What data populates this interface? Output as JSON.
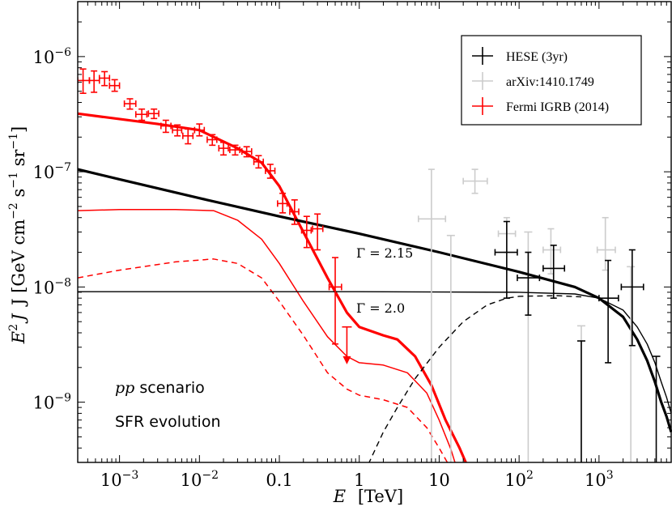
{
  "chart_data": {
    "type": "line",
    "xscale": "log",
    "yscale": "log",
    "xlim": [
      0.0003,
      8000
    ],
    "ylim": [
      3e-10,
      3e-06
    ],
    "xlabel": {
      "var": "E",
      "unit": "[TeV]"
    },
    "ylabel": {
      "base": "J [GeV cm",
      "e1": "−2",
      "mid1": " s",
      "e2": "−1",
      "mid2": " sr",
      "e3": "−1",
      "end": "]"
    },
    "x_ticks": [
      {
        "value": 0.001,
        "base": "10",
        "exp": "−3"
      },
      {
        "value": 0.01,
        "base": "10",
        "exp": "−2"
      },
      {
        "value": 0.1,
        "base": "0.1",
        "exp": ""
      },
      {
        "value": 1,
        "base": "1",
        "exp": ""
      },
      {
        "value": 10,
        "base": "10",
        "exp": ""
      },
      {
        "value": 100,
        "base": "10",
        "exp": "2"
      },
      {
        "value": 1000,
        "base": "10",
        "exp": "3"
      }
    ],
    "y_ticks": [
      {
        "value": 1e-09,
        "base": "10",
        "exp": "−9"
      },
      {
        "value": 1e-08,
        "base": "10",
        "exp": "−8"
      },
      {
        "value": 1e-07,
        "base": "10",
        "exp": "−7"
      },
      {
        "value": 1e-06,
        "base": "10",
        "exp": "−6"
      }
    ],
    "annotations": {
      "gamma_215": "Γ = 2.15",
      "gamma_20": "Γ = 2.0",
      "scenario_var": "pp",
      "scenario_word": " scenario",
      "evolution": "SFR evolution"
    },
    "legend": [
      {
        "label": "HESE (3yr)",
        "color": "#000000"
      },
      {
        "label": "arXiv:1410.1749",
        "color": "#cccccc"
      },
      {
        "label": "Fermi IGRB (2014)",
        "color": "#ff0000"
      }
    ],
    "lines": [
      {
        "name": "red-total-thick",
        "color": "#ff0000",
        "width": 3.2,
        "dash": "",
        "points": [
          [
            0.0003,
            3.2e-07
          ],
          [
            0.003,
            2.6e-07
          ],
          [
            0.01,
            2.3e-07
          ],
          [
            0.03,
            1.6e-07
          ],
          [
            0.06,
            1.2e-07
          ],
          [
            0.1,
            7.5e-08
          ],
          [
            0.2,
            3e-08
          ],
          [
            0.4,
            1.2e-08
          ],
          [
            0.7,
            6e-09
          ],
          [
            1,
            4.5e-09
          ],
          [
            2,
            3.8e-09
          ],
          [
            3,
            3.5e-09
          ],
          [
            5,
            2.5e-09
          ],
          [
            8,
            1.4e-09
          ],
          [
            12,
            7e-10
          ],
          [
            18,
            4e-10
          ],
          [
            22,
            2.9e-10
          ]
        ]
      },
      {
        "name": "red-thin-solid",
        "color": "#ff0000",
        "width": 1.5,
        "dash": "",
        "points": [
          [
            0.0003,
            4.6e-08
          ],
          [
            0.001,
            4.7e-08
          ],
          [
            0.005,
            4.7e-08
          ],
          [
            0.015,
            4.6e-08
          ],
          [
            0.03,
            3.8e-08
          ],
          [
            0.06,
            2.6e-08
          ],
          [
            0.1,
            1.6e-08
          ],
          [
            0.2,
            7.5e-09
          ],
          [
            0.4,
            3.7e-09
          ],
          [
            0.7,
            2.5e-09
          ],
          [
            1,
            2.2e-09
          ],
          [
            2,
            2.1e-09
          ],
          [
            4,
            1.8e-09
          ],
          [
            7,
            1.2e-09
          ],
          [
            10,
            7e-10
          ],
          [
            14,
            3.9e-10
          ],
          [
            16,
            2.9e-10
          ]
        ]
      },
      {
        "name": "red-dashed",
        "color": "#ff0000",
        "width": 1.5,
        "dash": "7,5",
        "points": [
          [
            0.0003,
            1.2e-08
          ],
          [
            0.001,
            1.4e-08
          ],
          [
            0.005,
            1.65e-08
          ],
          [
            0.015,
            1.75e-08
          ],
          [
            0.03,
            1.6e-08
          ],
          [
            0.06,
            1.2e-08
          ],
          [
            0.1,
            7.5e-09
          ],
          [
            0.2,
            3.8e-09
          ],
          [
            0.4,
            1.8e-09
          ],
          [
            0.7,
            1.3e-09
          ],
          [
            1,
            1.15e-09
          ],
          [
            2,
            1.05e-09
          ],
          [
            4,
            9e-10
          ],
          [
            7,
            6e-10
          ],
          [
            10,
            4e-10
          ],
          [
            13,
            2.9e-10
          ]
        ]
      },
      {
        "name": "black-thick",
        "color": "#000000",
        "width": 3.2,
        "dash": "",
        "points": [
          [
            0.0003,
            1.05e-07
          ],
          [
            0.001,
            8.6e-08
          ],
          [
            0.01,
            5.9e-08
          ],
          [
            0.1,
            4.1e-08
          ],
          [
            1,
            2.9e-08
          ],
          [
            10,
            2e-08
          ],
          [
            100,
            1.35e-08
          ],
          [
            500,
            1e-08
          ],
          [
            1000,
            8e-09
          ],
          [
            2000,
            5.5e-09
          ],
          [
            3000,
            3.5e-09
          ],
          [
            4000,
            2.3e-09
          ],
          [
            5000,
            1.5e-09
          ],
          [
            6000,
            1e-09
          ],
          [
            7000,
            7.5e-10
          ],
          [
            8000,
            5.5e-10
          ]
        ]
      },
      {
        "name": "black-thin",
        "color": "#000000",
        "width": 1.4,
        "dash": "",
        "points": [
          [
            0.0003,
            9.1e-09
          ],
          [
            1,
            9.1e-09
          ],
          [
            100,
            9e-09
          ],
          [
            500,
            8.7e-09
          ],
          [
            1000,
            8e-09
          ],
          [
            2000,
            6.3e-09
          ],
          [
            3000,
            4.5e-09
          ],
          [
            4000,
            3.2e-09
          ],
          [
            5000,
            2.2e-09
          ],
          [
            6000,
            1.5e-09
          ],
          [
            7000,
            1.1e-09
          ],
          [
            8000,
            8e-10
          ]
        ]
      },
      {
        "name": "black-dashed",
        "color": "#000000",
        "width": 1.4,
        "dash": "7,5",
        "points": [
          [
            1.3,
            2.9e-10
          ],
          [
            2,
            5.5e-10
          ],
          [
            3,
            9e-10
          ],
          [
            5,
            1.6e-09
          ],
          [
            10,
            3e-09
          ],
          [
            20,
            5e-09
          ],
          [
            40,
            7e-09
          ],
          [
            70,
            8e-09
          ],
          [
            100,
            8.3e-09
          ],
          [
            300,
            8.4e-09
          ],
          [
            600,
            8.2e-09
          ]
        ]
      }
    ],
    "series": [
      {
        "name": "arXiv:1410.1749",
        "color": "#cccccc",
        "points": [
          {
            "x": 8,
            "y": 3.9e-08,
            "xlo": 5.5,
            "xhi": 12,
            "ylo": 2.9e-10,
            "yhi": 1.05e-07
          },
          {
            "x": 14,
            "y": 2.8e-08,
            "lo_only": true,
            "ylo": 2.9e-10
          },
          {
            "x": 28,
            "y": 8.3e-08,
            "xlo": 20,
            "xhi": 40,
            "ylo": 6.5e-08,
            "yhi": 1.05e-07
          },
          {
            "x": 70,
            "y": 2.9e-08,
            "xlo": 55,
            "xhi": 90,
            "ylo": 2e-08,
            "yhi": 4e-08
          },
          {
            "x": 130,
            "y": 3e-08,
            "lo_only": true,
            "ylo": 2.9e-10
          },
          {
            "x": 250,
            "y": 2.1e-08,
            "xlo": 200,
            "xhi": 330,
            "ylo": 1.3e-08,
            "yhi": 3.2e-08
          },
          {
            "x": 600,
            "y": 4.6e-09,
            "lo_only": true,
            "ylo": 2.9e-10
          },
          {
            "x": 1200,
            "y": 2.1e-08,
            "xlo": 950,
            "xhi": 1600,
            "ylo": 1.4e-08,
            "yhi": 4e-08
          },
          {
            "x": 2500,
            "y": 1.5e-08,
            "lo_only": true,
            "ylo": 2.9e-10
          }
        ]
      },
      {
        "name": "HESE (3yr)",
        "color": "#000000",
        "points": [
          {
            "x": 70,
            "y": 2e-08,
            "xlo": 50,
            "xhi": 95,
            "ylo": 8e-09,
            "yhi": 3.7e-08
          },
          {
            "x": 130,
            "y": 1.2e-08,
            "xlo": 95,
            "xhi": 180,
            "ylo": 5.7e-09,
            "yhi": 2e-08
          },
          {
            "x": 270,
            "y": 1.45e-08,
            "xlo": 200,
            "xhi": 370,
            "ylo": 8e-09,
            "yhi": 2.3e-08
          },
          {
            "x": 600,
            "y": 3.4e-09,
            "lo_only": true,
            "ylo": 2.9e-10
          },
          {
            "x": 1300,
            "y": 8e-09,
            "xlo": 1000,
            "xhi": 1750,
            "ylo": 2.2e-09,
            "yhi": 1.7e-08
          },
          {
            "x": 2600,
            "y": 1e-08,
            "xlo": 1900,
            "xhi": 3600,
            "ylo": 3.1e-09,
            "yhi": 2.1e-08
          },
          {
            "x": 5200,
            "y": 2.5e-09,
            "lo_only": true,
            "ylo": 2.9e-10
          }
        ]
      },
      {
        "name": "Fermi IGRB (2014)",
        "color": "#ff0000",
        "points": [
          {
            "x": 0.00035,
            "y": 6.2e-07,
            "xlo": 0.0003,
            "xhi": 0.00042,
            "ylo": 4.8e-07,
            "yhi": 7.8e-07
          },
          {
            "x": 0.00048,
            "y": 6.2e-07,
            "xlo": 0.00042,
            "xhi": 0.00056,
            "ylo": 4.9e-07,
            "yhi": 7.5e-07
          },
          {
            "x": 0.00065,
            "y": 6.5e-07,
            "xlo": 0.00056,
            "xhi": 0.00075,
            "ylo": 5.6e-07,
            "yhi": 7.4e-07
          },
          {
            "x": 0.00087,
            "y": 5.6e-07,
            "xlo": 0.00075,
            "xhi": 0.001,
            "ylo": 5e-07,
            "yhi": 6.3e-07
          },
          {
            "x": 0.00135,
            "y": 3.9e-07,
            "xlo": 0.00115,
            "xhi": 0.0016,
            "ylo": 3.5e-07,
            "yhi": 4.3e-07
          },
          {
            "x": 0.0019,
            "y": 3.15e-07,
            "xlo": 0.0016,
            "xhi": 0.0022,
            "ylo": 2.8e-07,
            "yhi": 3.5e-07
          },
          {
            "x": 0.0027,
            "y": 3.2e-07,
            "xlo": 0.0023,
            "xhi": 0.0031,
            "ylo": 2.9e-07,
            "yhi": 3.5e-07
          },
          {
            "x": 0.0038,
            "y": 2.5e-07,
            "xlo": 0.0033,
            "xhi": 0.0044,
            "ylo": 2.2e-07,
            "yhi": 2.8e-07
          },
          {
            "x": 0.0053,
            "y": 2.3e-07,
            "xlo": 0.0046,
            "xhi": 0.006,
            "ylo": 2.05e-07,
            "yhi": 2.55e-07
          },
          {
            "x": 0.0072,
            "y": 2.05e-07,
            "xlo": 0.0062,
            "xhi": 0.0083,
            "ylo": 1.75e-07,
            "yhi": 2.35e-07
          },
          {
            "x": 0.01,
            "y": 2.3e-07,
            "xlo": 0.0087,
            "xhi": 0.0115,
            "ylo": 2.05e-07,
            "yhi": 2.6e-07
          },
          {
            "x": 0.0145,
            "y": 1.9e-07,
            "xlo": 0.0125,
            "xhi": 0.0165,
            "ylo": 1.7e-07,
            "yhi": 2.1e-07
          },
          {
            "x": 0.02,
            "y": 1.6e-07,
            "xlo": 0.0175,
            "xhi": 0.023,
            "ylo": 1.4e-07,
            "yhi": 1.8e-07
          },
          {
            "x": 0.028,
            "y": 1.55e-07,
            "xlo": 0.024,
            "xhi": 0.032,
            "ylo": 1.4e-07,
            "yhi": 1.7e-07
          },
          {
            "x": 0.039,
            "y": 1.5e-07,
            "xlo": 0.034,
            "xhi": 0.045,
            "ylo": 1.35e-07,
            "yhi": 1.65e-07
          },
          {
            "x": 0.055,
            "y": 1.22e-07,
            "xlo": 0.048,
            "xhi": 0.063,
            "ylo": 1.08e-07,
            "yhi": 1.38e-07
          },
          {
            "x": 0.077,
            "y": 1.02e-07,
            "xlo": 0.067,
            "xhi": 0.088,
            "ylo": 8.8e-08,
            "yhi": 1.16e-07
          },
          {
            "x": 0.11,
            "y": 5.3e-08,
            "xlo": 0.095,
            "xhi": 0.125,
            "ylo": 4.4e-08,
            "yhi": 6.5e-08
          },
          {
            "x": 0.155,
            "y": 4.5e-08,
            "xlo": 0.135,
            "xhi": 0.175,
            "ylo": 3.5e-08,
            "yhi": 5.7e-08
          },
          {
            "x": 0.22,
            "y": 3.1e-08,
            "xlo": 0.19,
            "xhi": 0.25,
            "ylo": 2.2e-08,
            "yhi": 4.1e-08
          },
          {
            "x": 0.3,
            "y": 3.2e-08,
            "xlo": 0.26,
            "xhi": 0.35,
            "ylo": 2.1e-08,
            "yhi": 4.3e-08
          },
          {
            "x": 0.5,
            "y": 1e-08,
            "xlo": 0.42,
            "xhi": 0.6,
            "ylo": 3.2e-09,
            "yhi": 1.8e-08
          },
          {
            "x": 0.7,
            "y": 4.5e-09,
            "upper_limit": true,
            "ylo": 2.2e-09
          }
        ]
      }
    ]
  }
}
